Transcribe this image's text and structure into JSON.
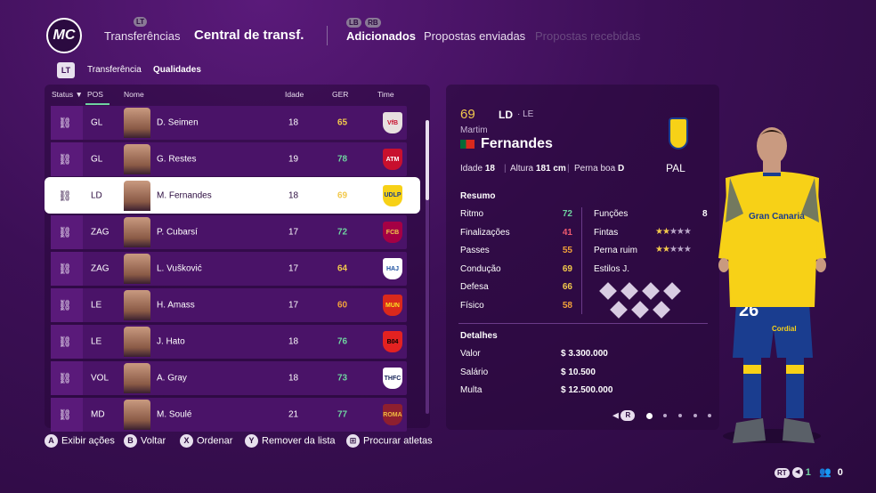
{
  "header": {
    "logo": "MC",
    "nav": [
      {
        "label": "Transferências"
      },
      {
        "label": "Central de transf."
      },
      {
        "label": "Adicionados"
      },
      {
        "label": "Propostas enviadas"
      },
      {
        "label": "Propostas recebidas"
      }
    ],
    "hint_lt": "LT",
    "hint_lb": "LB",
    "hint_rb": "RB"
  },
  "subnav": {
    "icon": "LT",
    "items": [
      "Transferência",
      "Qualidades"
    ]
  },
  "table": {
    "columns": [
      "Status",
      "POS",
      "Nome",
      "Idade",
      "GER",
      "Time"
    ],
    "rows": [
      {
        "pos": "GL",
        "name": "D. Seimen",
        "age": "18",
        "ger": "65",
        "ger_color": "yellow",
        "club": "VfB",
        "crest_bg": "#e8e0e0",
        "crest_fg": "#c8102e"
      },
      {
        "pos": "GL",
        "name": "G. Restes",
        "age": "19",
        "ger": "78",
        "ger_color": "green",
        "club": "ATM",
        "crest_bg": "#c8102e",
        "crest_fg": "#ffffff"
      },
      {
        "pos": "LD",
        "name": "M. Fernandes",
        "age": "18",
        "ger": "69",
        "ger_color": "yellow",
        "club": "UDLP",
        "crest_bg": "#f7d117",
        "crest_fg": "#1a3d8f",
        "selected": true
      },
      {
        "pos": "ZAG",
        "name": "P. Cubarsí",
        "age": "17",
        "ger": "72",
        "ger_color": "green",
        "club": "FCB",
        "crest_bg": "#a50044",
        "crest_fg": "#f2c94c"
      },
      {
        "pos": "ZAG",
        "name": "L. Vušković",
        "age": "17",
        "ger": "64",
        "ger_color": "yellow",
        "club": "HAJ",
        "crest_bg": "#ffffff",
        "crest_fg": "#1a4fa0"
      },
      {
        "pos": "LE",
        "name": "H. Amass",
        "age": "17",
        "ger": "60",
        "ger_color": "orange",
        "club": "MUN",
        "crest_bg": "#da291c",
        "crest_fg": "#fbe122"
      },
      {
        "pos": "LE",
        "name": "J. Hato",
        "age": "18",
        "ger": "76",
        "ger_color": "green",
        "club": "B04",
        "crest_bg": "#e32221",
        "crest_fg": "#000000"
      },
      {
        "pos": "VOL",
        "name": "A. Gray",
        "age": "18",
        "ger": "73",
        "ger_color": "green",
        "club": "THFC",
        "crest_bg": "#ffffff",
        "crest_fg": "#132257"
      },
      {
        "pos": "MD",
        "name": "M. Soulé",
        "age": "21",
        "ger": "77",
        "ger_color": "green",
        "club": "ROMA",
        "crest_bg": "#8e1f2f",
        "crest_fg": "#f0bc42"
      }
    ]
  },
  "detail": {
    "overall": "69",
    "position": "LD",
    "alt_position": "· LE",
    "first_name": "Martim",
    "last_name": "Fernandes",
    "age_label": "Idade",
    "age": "18",
    "height_label": "Altura",
    "height": "181 cm",
    "foot_label": "Perna boa",
    "foot": "D",
    "club_abbr": "PAL",
    "summary_title": "Resumo",
    "stats": [
      {
        "label": "Ritmo",
        "value": "72",
        "color": "#6fd3a0"
      },
      {
        "label": "Finalizações",
        "value": "41",
        "color": "#ef5a6f"
      },
      {
        "label": "Passes",
        "value": "55",
        "color": "#f2a13a"
      },
      {
        "label": "Condução",
        "value": "69",
        "color": "#f2c94c"
      },
      {
        "label": "Defesa",
        "value": "66",
        "color": "#f2c94c"
      },
      {
        "label": "Físico",
        "value": "58",
        "color": "#f2a13a"
      }
    ],
    "functions_label": "Funções",
    "functions_value": "8",
    "skill_moves_label": "Fintas",
    "skill_moves_stars": 2,
    "weak_foot_label": "Perna ruim",
    "weak_foot_stars": 2,
    "styles_label": "Estilos J.",
    "details_title": "Detalhes",
    "value_label": "Valor",
    "value": "$ 3.300.000",
    "salary_label": "Salário",
    "salary": "$ 10.500",
    "release_label": "Multa",
    "release": "$ 12.500.000",
    "pager_btn": "R",
    "jersey_number": "26",
    "sponsor": "Gran Canaria",
    "sponsor2": "Cordial"
  },
  "footer": [
    {
      "btn": "A",
      "label": "Exibir ações"
    },
    {
      "btn": "B",
      "label": "Voltar"
    },
    {
      "btn": "X",
      "label": "Ordenar"
    },
    {
      "btn": "Y",
      "label": "Remover da lista"
    },
    {
      "btn": "⊞",
      "label": "Procurar atletas"
    }
  ],
  "bottom_right": {
    "rt": "RT",
    "count1": "1",
    "count2": "0"
  }
}
